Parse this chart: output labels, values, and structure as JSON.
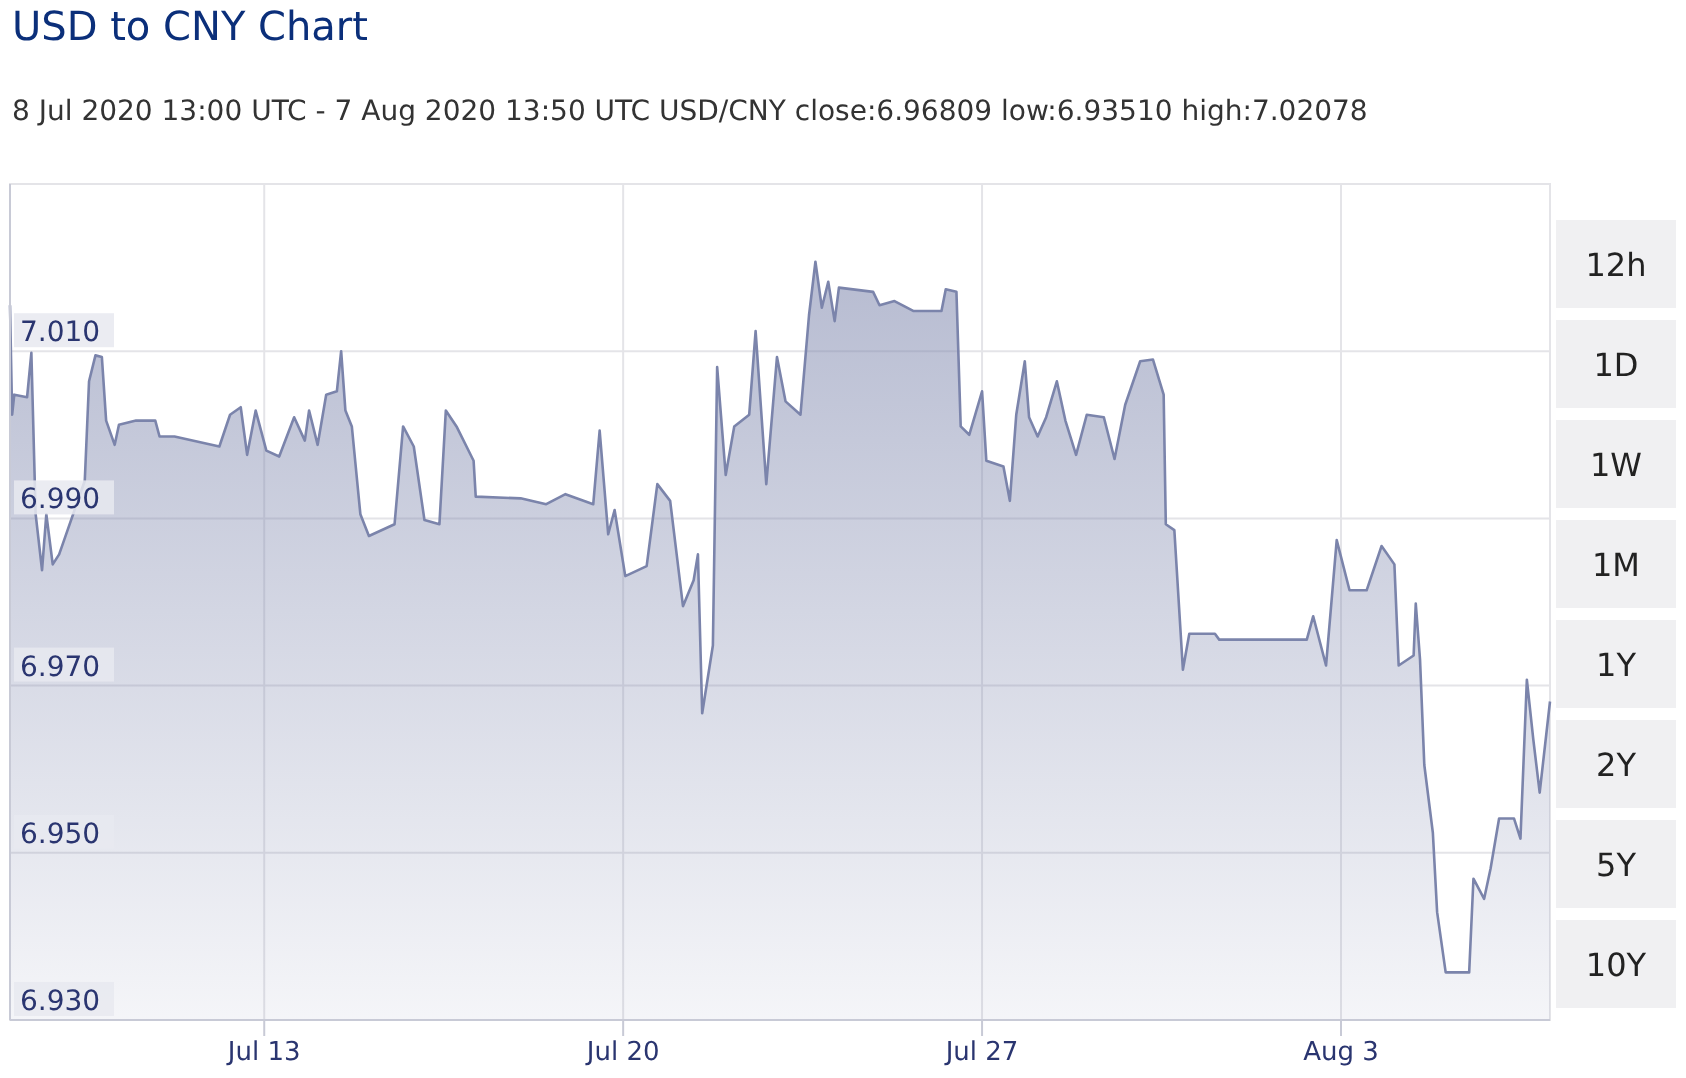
{
  "chart_data": {
    "type": "area",
    "title": "USD to CNY Chart",
    "subtitle": "8 Jul 2020 13:00 UTC - 7 Aug 2020 13:50 UTC    USD/CNY close:6.96809 low:6.93510 high:7.02078",
    "annotations": [
      "12h",
      "1D",
      "1W",
      "1M",
      "1Y",
      "2Y",
      "5Y",
      "10Y"
    ],
    "xlim": [
      "2020-07-08T13:00",
      "2020-08-07T13:50"
    ],
    "xticks": [
      {
        "value": "2020-07-13T12:00",
        "label": "Jul 13"
      },
      {
        "value": "2020-07-20T12:00",
        "label": "Jul 20"
      },
      {
        "value": "2020-07-27T12:00",
        "label": "Jul 27"
      },
      {
        "value": "2020-08-03T12:00",
        "label": "Aug 3"
      }
    ],
    "ylim": [
      6.93,
      7.03
    ],
    "yticks": [
      {
        "value": 6.93,
        "label": "6.930"
      },
      {
        "value": 6.95,
        "label": "6.950"
      },
      {
        "value": 6.97,
        "label": "6.970"
      },
      {
        "value": 6.99,
        "label": "6.990"
      },
      {
        "value": 7.01,
        "label": "7.010"
      }
    ],
    "grid": true,
    "series": [
      {
        "color": "#7b84ab",
        "x": [
          "2020-07-08T13:00",
          "2020-07-08T14:00",
          "2020-07-08T15:00",
          "2020-07-08T21:00",
          "2020-07-08T23:00",
          "2020-07-09T01:00",
          "2020-07-09T04:00",
          "2020-07-09T06:00",
          "2020-07-09T09:00",
          "2020-07-09T12:00",
          "2020-07-10T00:00",
          "2020-07-10T02:00",
          "2020-07-10T05:00",
          "2020-07-10T08:00",
          "2020-07-10T10:00",
          "2020-07-10T14:00",
          "2020-07-10T16:00",
          "2020-07-11T00:00",
          "2020-07-11T09:00",
          "2020-07-11T11:00",
          "2020-07-11T18:00",
          "2020-07-12T15:00",
          "2020-07-12T20:00",
          "2020-07-13T01:00",
          "2020-07-13T04:00",
          "2020-07-13T08:00",
          "2020-07-13T13:00",
          "2020-07-13T19:00",
          "2020-07-14T02:00",
          "2020-07-14T07:00",
          "2020-07-14T09:00",
          "2020-07-14T13:00",
          "2020-07-14T17:00",
          "2020-07-14T22:00",
          "2020-07-15T00:00",
          "2020-07-15T02:00",
          "2020-07-15T05:00",
          "2020-07-15T09:00",
          "2020-07-15T13:00",
          "2020-07-16T01:00",
          "2020-07-16T05:00",
          "2020-07-16T10:00",
          "2020-07-16T15:00",
          "2020-07-16T22:00",
          "2020-07-17T01:00",
          "2020-07-17T06:00",
          "2020-07-17T14:00",
          "2020-07-17T15:00",
          "2020-07-18T12:00",
          "2020-07-19T00:00",
          "2020-07-19T09:00",
          "2020-07-19T22:00",
          "2020-07-20T01:00",
          "2020-07-20T05:00",
          "2020-07-20T08:00",
          "2020-07-20T13:00",
          "2020-07-20T23:00",
          "2020-07-21T04:00",
          "2020-07-21T10:00",
          "2020-07-21T16:00",
          "2020-07-21T21:00",
          "2020-07-21T23:00",
          "2020-07-22T01:00",
          "2020-07-22T06:00",
          "2020-07-22T08:00",
          "2020-07-22T12:00",
          "2020-07-22T16:00",
          "2020-07-22T23:00",
          "2020-07-23T02:00",
          "2020-07-23T07:00",
          "2020-07-23T12:00",
          "2020-07-23T16:00",
          "2020-07-23T23:00",
          "2020-07-24T03:00",
          "2020-07-24T06:00",
          "2020-07-24T09:00",
          "2020-07-24T12:00",
          "2020-07-24T15:00",
          "2020-07-24T17:00",
          "2020-07-25T09:00",
          "2020-07-25T12:00",
          "2020-07-25T19:00",
          "2020-07-26T04:00",
          "2020-07-26T17:00",
          "2020-07-26T19:00",
          "2020-07-27T00:00",
          "2020-07-27T02:00",
          "2020-07-27T06:00",
          "2020-07-27T12:00",
          "2020-07-27T14:00",
          "2020-07-27T22:00",
          "2020-07-28T01:00",
          "2020-07-28T04:00",
          "2020-07-28T08:00",
          "2020-07-28T10:00",
          "2020-07-28T14:00",
          "2020-07-28T18:00",
          "2020-07-28T23:00",
          "2020-07-29T03:00",
          "2020-07-29T08:00",
          "2020-07-29T13:00",
          "2020-07-29T21:00",
          "2020-07-30T02:00",
          "2020-07-30T07:00",
          "2020-07-30T14:00",
          "2020-07-30T20:00",
          "2020-07-31T01:00",
          "2020-07-31T02:00",
          "2020-07-31T06:00",
          "2020-07-31T10:00",
          "2020-07-31T13:00",
          "2020-08-01T01:00",
          "2020-08-01T03:00",
          "2020-08-02T20:00",
          "2020-08-02T23:00",
          "2020-08-03T05:00",
          "2020-08-03T10:00",
          "2020-08-03T16:00",
          "2020-08-04T00:00",
          "2020-08-04T07:00",
          "2020-08-04T13:00",
          "2020-08-04T15:00",
          "2020-08-04T22:00",
          "2020-08-04T23:00",
          "2020-08-05T01:00",
          "2020-08-05T03:00",
          "2020-08-05T07:00",
          "2020-08-05T09:00",
          "2020-08-05T13:00",
          "2020-08-06T00:00",
          "2020-08-06T02:00",
          "2020-08-06T07:00",
          "2020-08-06T10:00",
          "2020-08-06T14:00",
          "2020-08-06T21:00",
          "2020-08-07T00:00",
          "2020-08-07T03:00",
          "2020-08-07T06:00",
          "2020-08-07T09:00",
          "2020-08-07T13:50"
        ],
        "values": [
          7.0155,
          7.0024,
          7.0048,
          7.0045,
          7.0098,
          6.9905,
          6.9838,
          6.9905,
          6.9845,
          6.9857,
          6.9945,
          7.0064,
          7.0095,
          7.0093,
          7.0017,
          6.9988,
          7.0012,
          7.0017,
          7.0017,
          6.9998,
          6.9998,
          6.9986,
          7.0024,
          7.0033,
          6.9976,
          7.0029,
          6.9981,
          6.9974,
          7.0021,
          6.9993,
          7.0029,
          6.9988,
          7.0048,
          7.0052,
          7.01,
          7.0029,
          7.001,
          6.9905,
          6.9879,
          6.9893,
          7.001,
          6.9986,
          6.9898,
          6.9893,
          7.0029,
          7.001,
          6.9969,
          6.9926,
          6.9924,
          6.9917,
          6.9929,
          6.9917,
          7.0005,
          6.9881,
          6.991,
          6.9831,
          6.9843,
          6.9941,
          6.9921,
          6.9795,
          6.9826,
          6.9857,
          6.9667,
          6.9748,
          7.0081,
          6.9952,
          7.001,
          7.0024,
          7.0124,
          6.9941,
          7.0093,
          7.004,
          7.0024,
          7.0143,
          7.0207,
          7.0152,
          7.0183,
          7.0136,
          7.0176,
          7.0171,
          7.0155,
          7.016,
          7.0148,
          7.0148,
          7.0174,
          7.0171,
          7.001,
          7.0,
          7.0052,
          6.9969,
          6.9962,
          6.9921,
          7.0024,
          7.0088,
          7.0021,
          6.9998,
          7.0021,
          7.0064,
          7.0017,
          6.9976,
          7.0024,
          7.0021,
          6.9971,
          7.0036,
          7.0088,
          7.009,
          7.0048,
          6.9893,
          6.9886,
          6.9719,
          6.9762,
          6.9762,
          6.9755,
          6.9755,
          6.9783,
          6.9724,
          6.9874,
          6.9814,
          6.9814,
          6.9867,
          6.9845,
          6.9724,
          6.9736,
          6.9798,
          6.9731,
          6.9605,
          6.9524,
          6.9429,
          6.9357,
          6.9357,
          6.9469,
          6.9445,
          6.9481,
          6.9541,
          6.9541,
          6.9517,
          6.9707,
          6.9636,
          6.9572,
          6.9681
        ]
      }
    ]
  }
}
